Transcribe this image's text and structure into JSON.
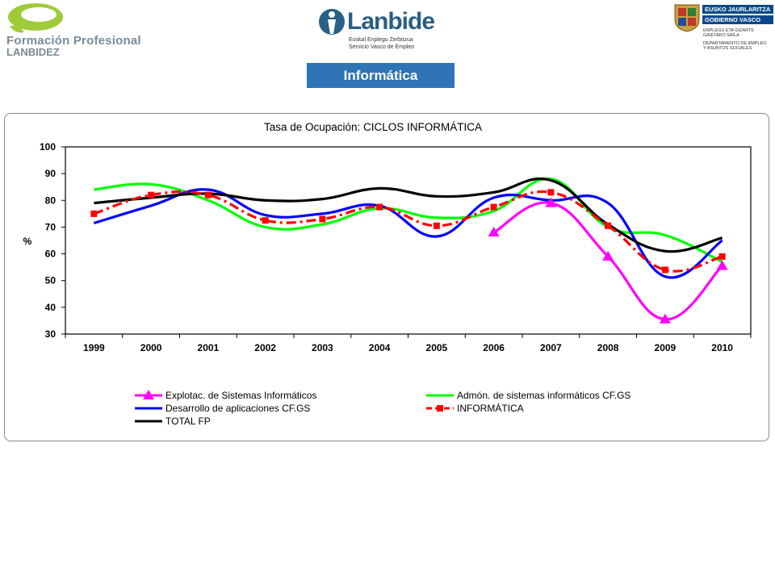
{
  "header": {
    "logo_left": {
      "line1": "Formación Profesional",
      "line2": "LANBIDEZ"
    },
    "logo_center": {
      "word": "Lanbide",
      "sub1": "Euskal Enplegu Zerbitzua",
      "sub2": "Servicio Vasco de Empleo"
    },
    "logo_right": {
      "bar1": "EUSKO JAURLARITZA",
      "bar2": "GOBIERNO VASCO",
      "dept1": "ENPLEGU ETA GIZARTE",
      "dept2": "GAIETAKO SAILA",
      "dept3": "DEPARTAMENTO DE EMPLEO",
      "dept4": "Y ASUNTOS SOCIALES"
    }
  },
  "section_tab": "Informática",
  "chart_data": {
    "type": "line",
    "title": "Tasa de Ocupación: CICLOS INFORMÁTICA",
    "ylabel": "%",
    "xlabel": "",
    "ylim": [
      30,
      100
    ],
    "yticks": [
      "100",
      "90",
      "80",
      "70",
      "60",
      "50",
      "40",
      "30"
    ],
    "categories": [
      "1999",
      "2000",
      "2001",
      "2002",
      "2003",
      "2004",
      "2005",
      "2006",
      "2007",
      "2008",
      "2009",
      "2010"
    ],
    "grid": false,
    "legend_position": "bottom",
    "series": [
      {
        "name": "Explotac. de Sistemas Informáticos",
        "color": "#ff00ff",
        "marker": "triangle",
        "values": [
          null,
          null,
          null,
          null,
          null,
          null,
          null,
          68,
          79,
          59,
          35.5,
          55.5
        ]
      },
      {
        "name": "Admón. de sistemas informáticos CF.GS",
        "color": "#00ff00",
        "marker": "none",
        "values": [
          84,
          86,
          80,
          70,
          71,
          77,
          73.5,
          76,
          88,
          70,
          67,
          57
        ]
      },
      {
        "name": "Desarrollo de aplicaciones CF.GS",
        "color": "#0000ff",
        "marker": "none",
        "values": [
          71.5,
          78,
          84,
          74.5,
          75,
          78,
          66.5,
          81,
          80,
          79,
          51.5,
          65
        ]
      },
      {
        "name": "INFORMÁTICA",
        "color": "#ff0000",
        "marker": "square",
        "dashed": true,
        "values": [
          75,
          82,
          82,
          72.5,
          73,
          77.5,
          70.5,
          77.5,
          83,
          70.5,
          54,
          59
        ]
      },
      {
        "name": "TOTAL FP",
        "color": "#000000",
        "marker": "none",
        "values": [
          79,
          81,
          82.5,
          80,
          80.5,
          84.5,
          81.5,
          83,
          87.5,
          71,
          61,
          66
        ]
      }
    ]
  }
}
